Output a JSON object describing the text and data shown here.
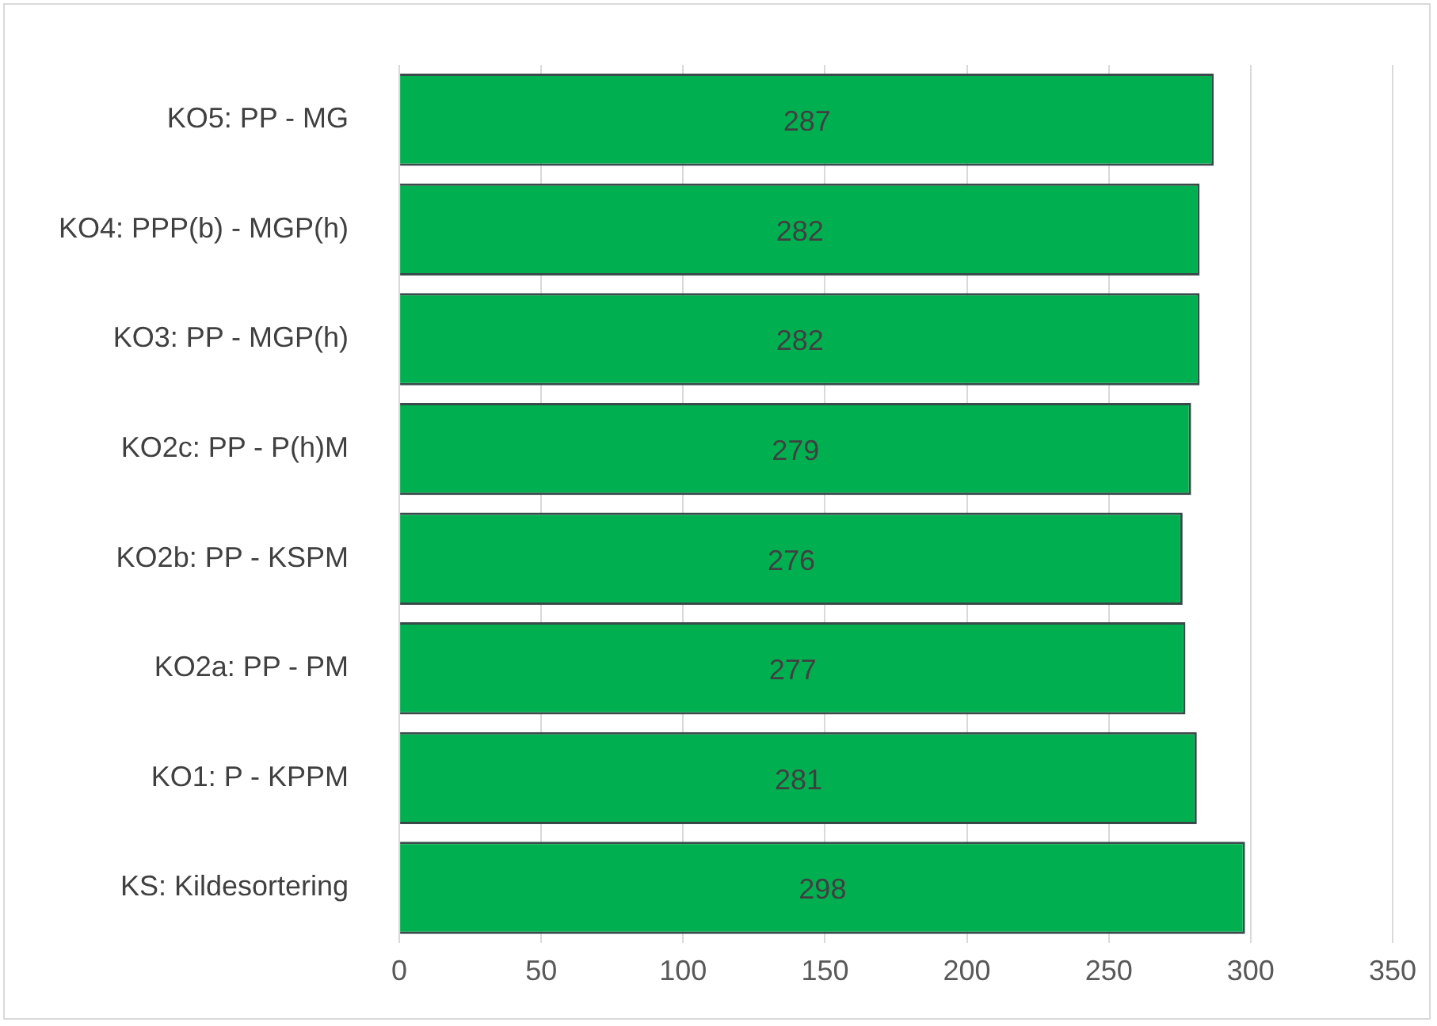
{
  "chart_data": {
    "type": "bar",
    "orientation": "horizontal",
    "categories": [
      "KO5: PP - MG",
      "KO4: PPP(b) - MGP(h)",
      "KO3: PP - MGP(h)",
      "KO2c: PP - P(h)M",
      "KO2b: PP - KSPM",
      "KO2a: PP - PM",
      "KO1: P - KPPM",
      "KS: Kildesortering"
    ],
    "values": [
      287,
      282,
      282,
      279,
      276,
      277,
      281,
      298
    ],
    "color": "#00b050",
    "xlim": [
      0,
      350
    ],
    "xticks": [
      0,
      50,
      100,
      150,
      200,
      250,
      300,
      350
    ],
    "grid": "x",
    "legend": false,
    "data_labels": true
  }
}
